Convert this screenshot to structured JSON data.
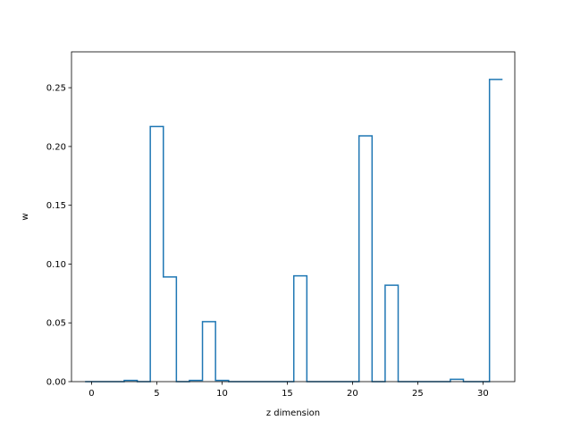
{
  "chart_data": {
    "type": "step",
    "xlabel": "z dimension",
    "ylabel": "w",
    "xlim": [
      -1.54,
      32.44
    ],
    "ylim": [
      0,
      0.2805
    ],
    "xticks": [
      0,
      5,
      10,
      15,
      20,
      25,
      30
    ],
    "yticks": [
      0.0,
      0.05,
      0.1,
      0.15,
      0.2,
      0.25
    ],
    "ytick_labels": [
      "0.00",
      "0.05",
      "0.10",
      "0.15",
      "0.20",
      "0.25"
    ],
    "xtick_labels": [
      "0",
      "5",
      "10",
      "15",
      "20",
      "25",
      "30"
    ],
    "grid": false,
    "line_color": "#1f77b4",
    "x": [
      0,
      1,
      2,
      3,
      4,
      5,
      6,
      7,
      8,
      9,
      10,
      11,
      12,
      13,
      14,
      15,
      16,
      17,
      18,
      19,
      20,
      21,
      22,
      23,
      24,
      25,
      26,
      27,
      28,
      29,
      30,
      31
    ],
    "values": [
      0.0,
      0.0,
      0.0,
      0.001,
      0.0,
      0.217,
      0.089,
      0.0,
      0.001,
      0.051,
      0.001,
      0.0,
      0.0,
      0.0,
      0.0,
      0.0,
      0.09,
      0.0,
      0.0,
      0.0,
      0.0,
      0.209,
      0.0,
      0.082,
      0.0,
      0.0,
      0.0,
      0.0,
      0.002,
      0.0,
      0.0,
      0.257
    ]
  }
}
